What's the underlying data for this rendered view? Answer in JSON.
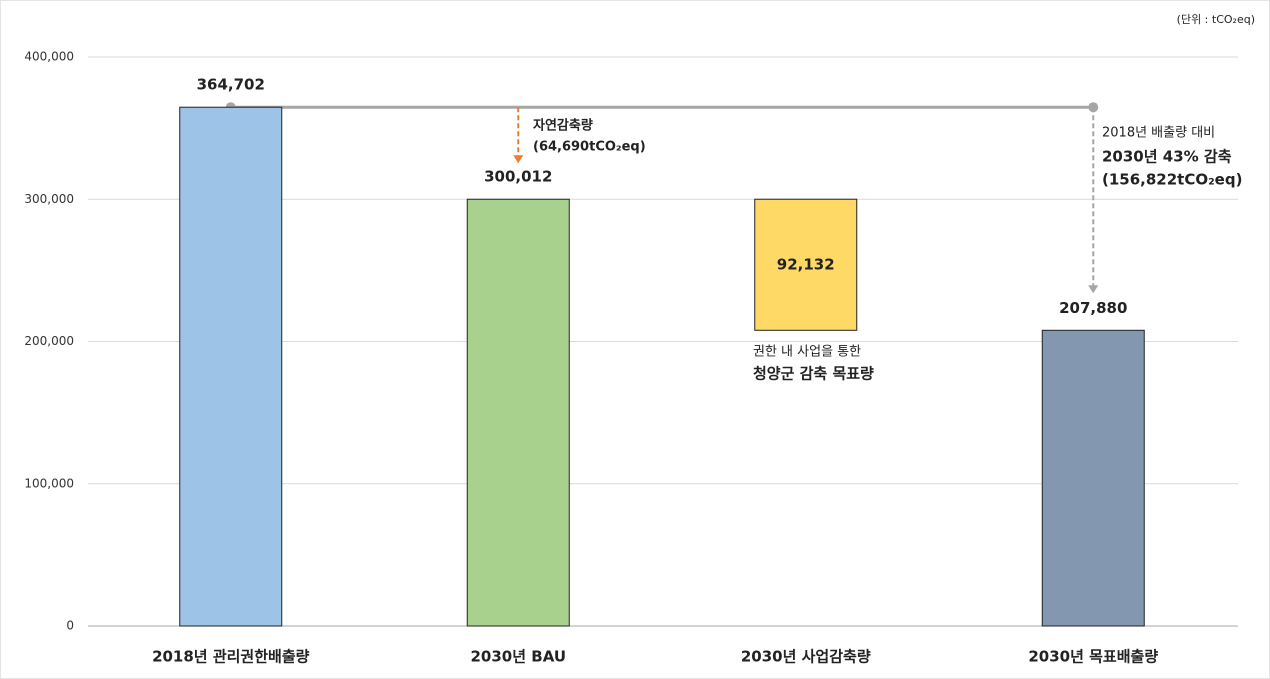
{
  "chart_data": {
    "type": "waterfall",
    "unit_note": "(단위 : tCO₂eq)",
    "categories": [
      "2018년 관리권한배출량",
      "2030년 BAU",
      "2030년 사업감축량",
      "2030년 목표배출량"
    ],
    "values": [
      364702,
      300012,
      92132,
      207880
    ],
    "value_labels": [
      "364,702",
      "300,012",
      "92,132",
      "207,880"
    ],
    "measures": [
      "absolute",
      "absolute",
      "decrease",
      "total"
    ],
    "colors": [
      "#9dc3e6",
      "#a9d18e",
      "#ffd966",
      "#8497b0"
    ],
    "ylim": [
      0,
      400000
    ],
    "yticks": [
      0,
      {
        "value": 100000,
        "label": "100,000"
      },
      {
        "value": 200000,
        "label": "200,000"
      },
      {
        "value": 300000,
        "label": "300,000"
      },
      {
        "value": 400000,
        "label": "400,000"
      }
    ],
    "grid": true,
    "annotations": {
      "natural": [
        "자연감축량",
        "(64,690tCO₂eq)"
      ],
      "target": [
        "2018년 배출량 대비",
        "2030년 43% 감축",
        "(156,822tCO₂eq)"
      ],
      "project": [
        "권한 내 사업을 통한",
        "청양군 감축 목표량"
      ]
    }
  }
}
